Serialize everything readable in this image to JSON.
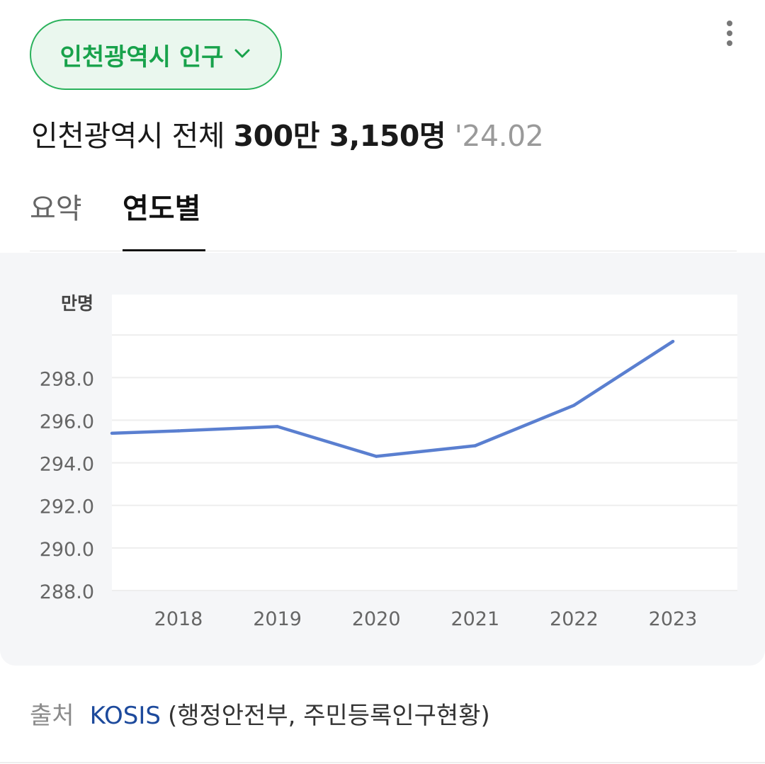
{
  "region_selector": {
    "label": "인천광역시 인구",
    "icon": "chevron-down-icon",
    "accent_color": "#18a24b"
  },
  "menu": {
    "icon": "more-vertical-icon"
  },
  "headline": {
    "prefix": "인천광역시 전체",
    "value": "300만 3,150명",
    "date": "'24.02"
  },
  "tabs": [
    {
      "label": "요약",
      "active": false
    },
    {
      "label": "연도별",
      "active": true
    }
  ],
  "chart_data": {
    "type": "line",
    "unit_label": "만명",
    "categories": [
      "2018",
      "2019",
      "2020",
      "2021",
      "2022",
      "2023"
    ],
    "series": [
      {
        "values": [
          295.5,
          295.7,
          294.3,
          294.8,
          296.7,
          299.7
        ],
        "color": "#5a7fd0"
      }
    ],
    "y_ticks": [
      "288.0",
      "290.0",
      "292.0",
      "294.0",
      "296.0",
      "298.0"
    ],
    "ylim": [
      288.0,
      301.9
    ],
    "grid": true,
    "legend": "none"
  },
  "source": {
    "label": "출처",
    "link_text": "KOSIS",
    "detail": "(행정안전부, 주민등록인구현황)"
  }
}
